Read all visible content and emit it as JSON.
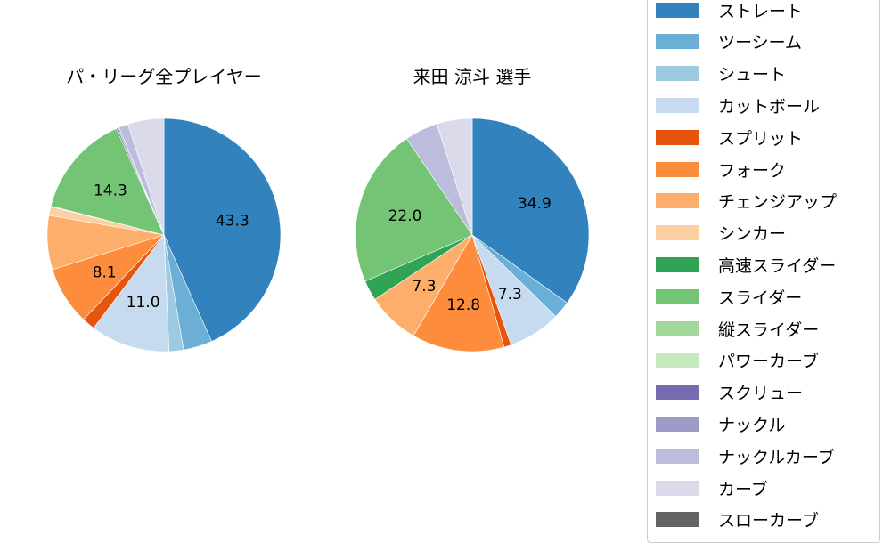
{
  "chart_data": [
    {
      "type": "pie",
      "title": "パ・リーグ全プレイヤー",
      "categories": [
        "ストレート",
        "ツーシーム",
        "シュート",
        "カットボール",
        "スプリット",
        "フォーク",
        "チェンジアップ",
        "シンカー",
        "高速スライダー",
        "スライダー",
        "縦スライダー",
        "パワーカーブ",
        "スクリュー",
        "ナックル",
        "ナックルカーブ",
        "カーブ",
        "スローカーブ"
      ],
      "values": [
        43.3,
        4.0,
        2.0,
        11.0,
        1.8,
        8.1,
        7.5,
        1.2,
        0.1,
        14.3,
        0.0,
        0.0,
        0.2,
        0.2,
        1.3,
        5.0,
        0.0
      ],
      "labels_shown": [
        "43.3",
        "11.0",
        "8.1",
        "14.3"
      ],
      "startangle": 90,
      "direction": "clockwise"
    },
    {
      "type": "pie",
      "title": "来田 涼斗  選手",
      "categories": [
        "ストレート",
        "ツーシーム",
        "シュート",
        "カットボール",
        "スプリット",
        "フォーク",
        "チェンジアップ",
        "シンカー",
        "高速スライダー",
        "スライダー",
        "縦スライダー",
        "パワーカーブ",
        "スクリュー",
        "ナックル",
        "ナックルカーブ",
        "カーブ",
        "スローカーブ"
      ],
      "values": [
        34.9,
        2.4,
        0.0,
        7.3,
        1.0,
        12.8,
        7.3,
        0.0,
        2.8,
        22.0,
        0.0,
        0.0,
        0.0,
        0.0,
        4.6,
        4.9,
        0.0
      ],
      "labels_shown": [
        "34.9",
        "7.3",
        "12.8",
        "7.3",
        "22.0"
      ],
      "startangle": 90,
      "direction": "clockwise"
    }
  ],
  "legend": {
    "position": "right",
    "items": [
      {
        "label": "ストレート",
        "color": "#3182bd"
      },
      {
        "label": "ツーシーム",
        "color": "#6baed6"
      },
      {
        "label": "シュート",
        "color": "#9ecae1"
      },
      {
        "label": "カットボール",
        "color": "#c6dbef"
      },
      {
        "label": "スプリット",
        "color": "#e6550d"
      },
      {
        "label": "フォーク",
        "color": "#fd8d3c"
      },
      {
        "label": "チェンジアップ",
        "color": "#fdae6b"
      },
      {
        "label": "シンカー",
        "color": "#fdd0a2"
      },
      {
        "label": "高速スライダー",
        "color": "#31a354"
      },
      {
        "label": "スライダー",
        "color": "#74c476"
      },
      {
        "label": "縦スライダー",
        "color": "#a1d99b"
      },
      {
        "label": "パワーカーブ",
        "color": "#c7e9c0"
      },
      {
        "label": "スクリュー",
        "color": "#756bb1"
      },
      {
        "label": "ナックル",
        "color": "#9e9ac8"
      },
      {
        "label": "ナックルカーブ",
        "color": "#bcbddc"
      },
      {
        "label": "カーブ",
        "color": "#dadaeb"
      },
      {
        "label": "スローカーブ",
        "color": "#636363"
      }
    ]
  },
  "titles": {
    "left": "パ・リーグ全プレイヤー",
    "right": "来田 涼斗  選手"
  }
}
